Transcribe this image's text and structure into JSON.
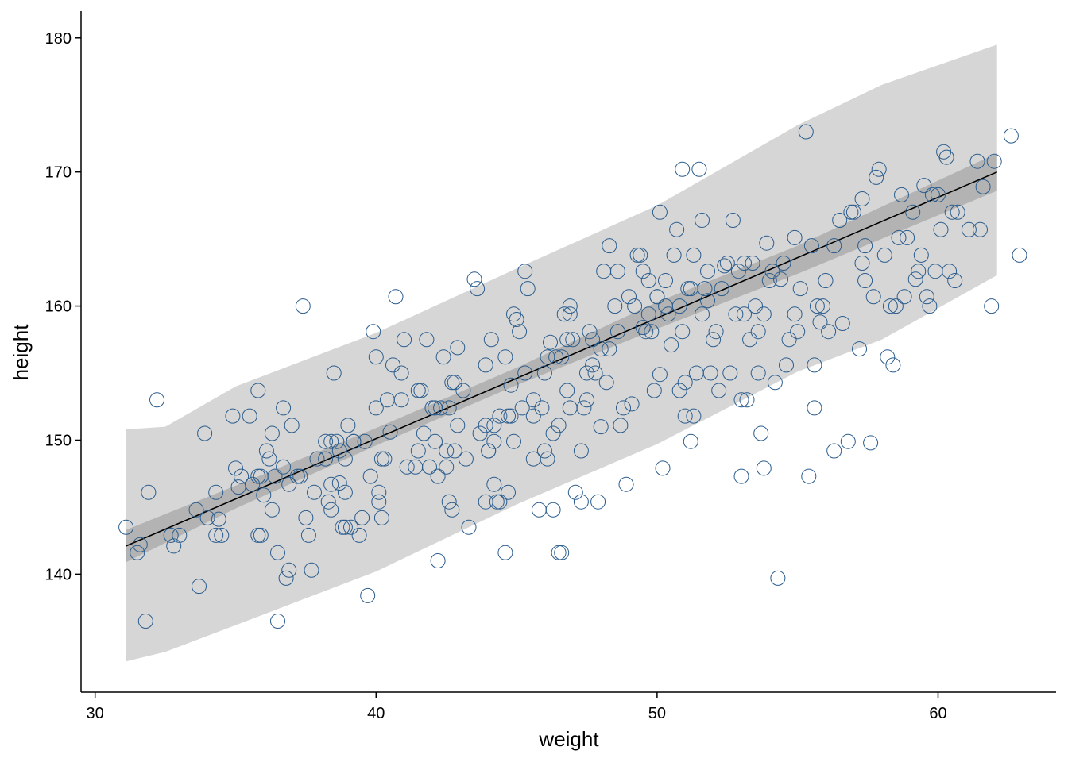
{
  "chart_data": {
    "type": "scatter",
    "xlabel": "weight",
    "ylabel": "height",
    "xlim": [
      29.5,
      64.2
    ],
    "ylim": [
      131.2,
      182
    ],
    "x_ticks": [
      30,
      40,
      50,
      60
    ],
    "y_ticks": [
      140,
      150,
      160,
      170,
      180
    ],
    "grid": false,
    "colors": {
      "points": "#2b5d8e",
      "regression_line": "#000000",
      "mean_interval": "#b3b3b3",
      "prediction_interval": "#d6d6d6"
    },
    "regression_line": {
      "x": [
        31.1,
        62.1
      ],
      "y": [
        142.1,
        170.0
      ]
    },
    "mean_interval": {
      "x": [
        31.1,
        35,
        40,
        45,
        50,
        55,
        62.1
      ],
      "lower": [
        140.9,
        144.9,
        149.6,
        154.1,
        158.3,
        162.4,
        168.6
      ],
      "upper": [
        143.3,
        146.6,
        150.9,
        155.4,
        160.3,
        164.5,
        171.4
      ]
    },
    "prediction_interval": {
      "x": [
        31.1,
        32.5,
        35,
        40,
        45,
        50,
        55,
        58,
        62.1
      ],
      "lower": [
        133.5,
        134.2,
        136.2,
        140.2,
        145.2,
        149.7,
        155.1,
        157.5,
        162.3
      ],
      "upper": [
        150.8,
        151.0,
        154.0,
        158.0,
        162.8,
        167.5,
        173.5,
        176.5,
        179.5
      ]
    },
    "points": [
      [
        31.1,
        143.5
      ],
      [
        31.5,
        141.6
      ],
      [
        31.6,
        142.2
      ],
      [
        31.8,
        136.5
      ],
      [
        31.9,
        146.1
      ],
      [
        32.2,
        153.0
      ],
      [
        32.7,
        142.9
      ],
      [
        32.8,
        142.1
      ],
      [
        33.0,
        142.9
      ],
      [
        33.6,
        144.8
      ],
      [
        33.7,
        139.1
      ],
      [
        33.9,
        150.5
      ],
      [
        34.0,
        144.2
      ],
      [
        34.3,
        146.1
      ],
      [
        34.3,
        142.9
      ],
      [
        34.4,
        144.1
      ],
      [
        34.5,
        142.9
      ],
      [
        34.9,
        151.8
      ],
      [
        35.0,
        147.9
      ],
      [
        35.2,
        147.3
      ],
      [
        35.5,
        151.8
      ],
      [
        35.6,
        146.7
      ],
      [
        35.8,
        147.3
      ],
      [
        35.8,
        153.7
      ],
      [
        35.9,
        147.3
      ],
      [
        35.8,
        142.9
      ],
      [
        35.9,
        142.9
      ],
      [
        36.1,
        149.2
      ],
      [
        36.2,
        148.6
      ],
      [
        36.3,
        150.5
      ],
      [
        36.3,
        144.8
      ],
      [
        36.4,
        147.3
      ],
      [
        36.5,
        141.6
      ],
      [
        36.5,
        136.5
      ],
      [
        36.7,
        152.4
      ],
      [
        36.7,
        148.0
      ],
      [
        36.8,
        139.7
      ],
      [
        36.9,
        140.3
      ],
      [
        36.9,
        146.7
      ],
      [
        37.0,
        151.1
      ],
      [
        37.2,
        147.3
      ],
      [
        37.3,
        147.3
      ],
      [
        37.4,
        160.0
      ],
      [
        37.5,
        144.2
      ],
      [
        37.6,
        142.9
      ],
      [
        37.7,
        140.3
      ],
      [
        37.8,
        146.1
      ],
      [
        37.9,
        148.6
      ],
      [
        38.2,
        149.9
      ],
      [
        38.2,
        148.6
      ],
      [
        38.3,
        145.4
      ],
      [
        38.4,
        149.9
      ],
      [
        38.4,
        144.8
      ],
      [
        38.4,
        146.7
      ],
      [
        38.5,
        155.0
      ],
      [
        38.6,
        149.9
      ],
      [
        38.7,
        149.2
      ],
      [
        38.8,
        143.5
      ],
      [
        38.9,
        148.6
      ],
      [
        38.9,
        143.5
      ],
      [
        38.9,
        146.1
      ],
      [
        39.0,
        151.1
      ],
      [
        39.1,
        143.5
      ],
      [
        39.2,
        149.9
      ],
      [
        39.2,
        149.9
      ],
      [
        39.4,
        142.9
      ],
      [
        39.5,
        144.2
      ],
      [
        39.6,
        149.9
      ],
      [
        39.7,
        138.4
      ],
      [
        39.8,
        147.3
      ],
      [
        39.9,
        158.1
      ],
      [
        40.0,
        152.4
      ],
      [
        40.0,
        156.2
      ],
      [
        40.1,
        145.4
      ],
      [
        40.1,
        146.1
      ],
      [
        40.2,
        144.2
      ],
      [
        40.2,
        148.6
      ],
      [
        40.3,
        148.6
      ],
      [
        40.4,
        153.0
      ],
      [
        40.6,
        155.6
      ],
      [
        40.7,
        160.7
      ],
      [
        40.9,
        153.0
      ],
      [
        40.9,
        155.0
      ],
      [
        41.0,
        157.5
      ],
      [
        41.1,
        148.0
      ],
      [
        41.4,
        148.0
      ],
      [
        41.5,
        149.2
      ],
      [
        41.6,
        153.7
      ],
      [
        41.7,
        150.5
      ],
      [
        41.8,
        157.5
      ],
      [
        41.9,
        148.0
      ],
      [
        42.0,
        152.4
      ],
      [
        42.1,
        149.9
      ],
      [
        42.1,
        152.4
      ],
      [
        42.2,
        141.0
      ],
      [
        42.2,
        147.3
      ],
      [
        42.3,
        152.4
      ],
      [
        42.4,
        156.2
      ],
      [
        42.5,
        149.2
      ],
      [
        42.5,
        148.0
      ],
      [
        42.6,
        152.4
      ],
      [
        42.6,
        145.4
      ],
      [
        42.7,
        144.8
      ],
      [
        42.7,
        154.3
      ],
      [
        42.8,
        154.3
      ],
      [
        42.8,
        149.2
      ],
      [
        42.9,
        151.1
      ],
      [
        43.1,
        153.7
      ],
      [
        43.3,
        143.5
      ],
      [
        43.5,
        162.0
      ],
      [
        43.6,
        161.3
      ],
      [
        43.7,
        150.5
      ],
      [
        43.9,
        151.1
      ],
      [
        43.9,
        145.4
      ],
      [
        43.9,
        155.6
      ],
      [
        44.0,
        149.2
      ],
      [
        44.0,
        149.2
      ],
      [
        44.1,
        157.5
      ],
      [
        44.2,
        149.9
      ],
      [
        44.2,
        146.7
      ],
      [
        44.2,
        151.1
      ],
      [
        44.3,
        145.4
      ],
      [
        44.4,
        145.4
      ],
      [
        44.4,
        151.8
      ],
      [
        44.6,
        141.6
      ],
      [
        44.6,
        156.2
      ],
      [
        44.7,
        146.1
      ],
      [
        44.7,
        151.8
      ],
      [
        44.8,
        151.8
      ],
      [
        44.9,
        159.4
      ],
      [
        44.9,
        149.9
      ],
      [
        45.1,
        158.1
      ],
      [
        45.2,
        152.4
      ],
      [
        45.3,
        162.6
      ],
      [
        45.3,
        155.0
      ],
      [
        45.4,
        161.3
      ],
      [
        45.6,
        148.6
      ],
      [
        45.6,
        151.8
      ],
      [
        45.6,
        153.0
      ],
      [
        45.8,
        144.8
      ],
      [
        45.9,
        152.4
      ],
      [
        46.0,
        155.0
      ],
      [
        46.0,
        149.2
      ],
      [
        46.1,
        156.2
      ],
      [
        46.1,
        148.6
      ],
      [
        46.3,
        144.8
      ],
      [
        46.3,
        150.5
      ],
      [
        46.4,
        156.2
      ],
      [
        46.5,
        141.6
      ],
      [
        46.5,
        151.1
      ],
      [
        46.6,
        156.2
      ],
      [
        46.6,
        141.6
      ],
      [
        46.7,
        159.4
      ],
      [
        46.8,
        153.7
      ],
      [
        46.8,
        157.5
      ],
      [
        46.9,
        159.4
      ],
      [
        46.9,
        160.0
      ],
      [
        46.9,
        152.4
      ],
      [
        47.0,
        157.5
      ],
      [
        47.1,
        146.1
      ],
      [
        47.3,
        145.4
      ],
      [
        47.3,
        149.2
      ],
      [
        47.4,
        152.4
      ],
      [
        47.5,
        153.0
      ],
      [
        47.5,
        155.0
      ],
      [
        47.6,
        158.1
      ],
      [
        47.7,
        157.5
      ],
      [
        47.8,
        155.0
      ],
      [
        47.9,
        145.4
      ],
      [
        48.0,
        156.8
      ],
      [
        48.1,
        162.6
      ],
      [
        48.2,
        154.3
      ],
      [
        48.3,
        156.8
      ],
      [
        48.3,
        164.5
      ],
      [
        48.5,
        160.0
      ],
      [
        48.6,
        162.6
      ],
      [
        48.6,
        158.1
      ],
      [
        48.7,
        151.1
      ],
      [
        48.8,
        152.4
      ],
      [
        48.9,
        146.7
      ],
      [
        49.0,
        160.7
      ],
      [
        49.1,
        152.7
      ],
      [
        49.2,
        160.0
      ],
      [
        49.3,
        163.8
      ],
      [
        49.4,
        163.8
      ],
      [
        49.5,
        162.6
      ],
      [
        49.6,
        158.1
      ],
      [
        49.7,
        161.9
      ],
      [
        49.7,
        159.4
      ],
      [
        49.8,
        158.1
      ],
      [
        49.9,
        153.7
      ],
      [
        50.0,
        160.7
      ],
      [
        50.0,
        160.7
      ],
      [
        50.1,
        167.0
      ],
      [
        50.1,
        154.9
      ],
      [
        50.2,
        147.9
      ],
      [
        50.3,
        161.9
      ],
      [
        50.3,
        160.0
      ],
      [
        50.4,
        159.4
      ],
      [
        50.6,
        163.8
      ],
      [
        50.7,
        165.7
      ],
      [
        50.8,
        160.0
      ],
      [
        50.8,
        153.7
      ],
      [
        50.9,
        170.2
      ],
      [
        50.9,
        158.1
      ],
      [
        51.0,
        154.3
      ],
      [
        51.0,
        151.8
      ],
      [
        51.1,
        161.3
      ],
      [
        51.2,
        149.9
      ],
      [
        51.2,
        161.3
      ],
      [
        51.3,
        163.8
      ],
      [
        51.3,
        151.8
      ],
      [
        51.4,
        155.0
      ],
      [
        51.5,
        170.2
      ],
      [
        51.6,
        159.4
      ],
      [
        51.6,
        166.4
      ],
      [
        51.7,
        161.3
      ],
      [
        51.8,
        162.6
      ],
      [
        51.9,
        155.0
      ],
      [
        52.0,
        157.5
      ],
      [
        52.1,
        158.1
      ],
      [
        52.2,
        153.7
      ],
      [
        52.3,
        161.3
      ],
      [
        52.5,
        163.2
      ],
      [
        52.6,
        155.0
      ],
      [
        52.7,
        166.4
      ],
      [
        52.8,
        159.4
      ],
      [
        52.9,
        162.6
      ],
      [
        53.0,
        147.3
      ],
      [
        53.0,
        153.0
      ],
      [
        53.1,
        163.2
      ],
      [
        53.1,
        159.4
      ],
      [
        53.2,
        153.0
      ],
      [
        53.3,
        157.5
      ],
      [
        53.4,
        163.2
      ],
      [
        53.5,
        160.0
      ],
      [
        53.6,
        158.1
      ],
      [
        53.6,
        155.0
      ],
      [
        53.7,
        150.5
      ],
      [
        53.8,
        159.4
      ],
      [
        53.8,
        147.9
      ],
      [
        54.0,
        161.9
      ],
      [
        54.1,
        162.6
      ],
      [
        54.2,
        154.3
      ],
      [
        54.3,
        139.7
      ],
      [
        54.4,
        162.0
      ],
      [
        54.5,
        163.2
      ],
      [
        54.6,
        155.6
      ],
      [
        54.7,
        157.5
      ],
      [
        54.9,
        159.4
      ],
      [
        54.9,
        165.1
      ],
      [
        55.0,
        158.1
      ],
      [
        55.1,
        161.3
      ],
      [
        55.3,
        173.0
      ],
      [
        55.4,
        147.3
      ],
      [
        55.5,
        164.5
      ],
      [
        55.6,
        155.6
      ],
      [
        55.6,
        152.4
      ],
      [
        55.7,
        160.0
      ],
      [
        55.8,
        158.8
      ],
      [
        55.9,
        160.0
      ],
      [
        56.0,
        161.9
      ],
      [
        56.1,
        158.1
      ],
      [
        56.3,
        149.2
      ],
      [
        56.3,
        164.5
      ],
      [
        56.5,
        166.4
      ],
      [
        56.6,
        158.7
      ],
      [
        56.8,
        149.9
      ],
      [
        56.9,
        167.0
      ],
      [
        57.0,
        167.0
      ],
      [
        57.2,
        156.8
      ],
      [
        57.3,
        163.2
      ],
      [
        57.4,
        161.9
      ],
      [
        57.4,
        164.5
      ],
      [
        57.6,
        149.8
      ],
      [
        57.7,
        160.7
      ],
      [
        57.8,
        169.6
      ],
      [
        57.9,
        170.2
      ],
      [
        58.1,
        163.8
      ],
      [
        58.2,
        156.2
      ],
      [
        58.3,
        160.0
      ],
      [
        58.4,
        155.6
      ],
      [
        58.5,
        160.0
      ],
      [
        58.6,
        165.1
      ],
      [
        58.7,
        168.3
      ],
      [
        58.8,
        160.7
      ],
      [
        58.9,
        165.1
      ],
      [
        59.1,
        167.0
      ],
      [
        59.2,
        162.0
      ],
      [
        59.3,
        162.6
      ],
      [
        59.4,
        163.8
      ],
      [
        59.5,
        169.0
      ],
      [
        59.6,
        160.7
      ],
      [
        59.7,
        160.0
      ],
      [
        59.8,
        168.3
      ],
      [
        59.9,
        162.6
      ],
      [
        60.0,
        168.3
      ],
      [
        60.1,
        165.7
      ],
      [
        60.2,
        171.5
      ],
      [
        60.3,
        171.1
      ],
      [
        60.4,
        162.6
      ],
      [
        60.5,
        167.0
      ],
      [
        60.6,
        161.9
      ],
      [
        60.7,
        167.0
      ],
      [
        61.1,
        165.7
      ],
      [
        61.4,
        170.8
      ],
      [
        61.5,
        165.7
      ],
      [
        61.6,
        168.9
      ],
      [
        61.9,
        160.0
      ],
      [
        62.0,
        170.8
      ],
      [
        62.6,
        172.7
      ],
      [
        62.9,
        163.8
      ],
      [
        52.4,
        163.0
      ],
      [
        41.5,
        153.7
      ],
      [
        46.2,
        157.3
      ],
      [
        44.8,
        154.1
      ],
      [
        47.7,
        155.6
      ],
      [
        43.2,
        148.6
      ],
      [
        49.5,
        158.4
      ],
      [
        51.8,
        160.4
      ],
      [
        38.7,
        146.8
      ],
      [
        40.5,
        150.6
      ],
      [
        36.0,
        145.9
      ],
      [
        35.1,
        146.5
      ],
      [
        45.0,
        159.0
      ],
      [
        48.0,
        151.0
      ],
      [
        42.9,
        156.9
      ],
      [
        50.5,
        157.1
      ],
      [
        53.9,
        164.7
      ],
      [
        57.3,
        168.0
      ]
    ]
  }
}
